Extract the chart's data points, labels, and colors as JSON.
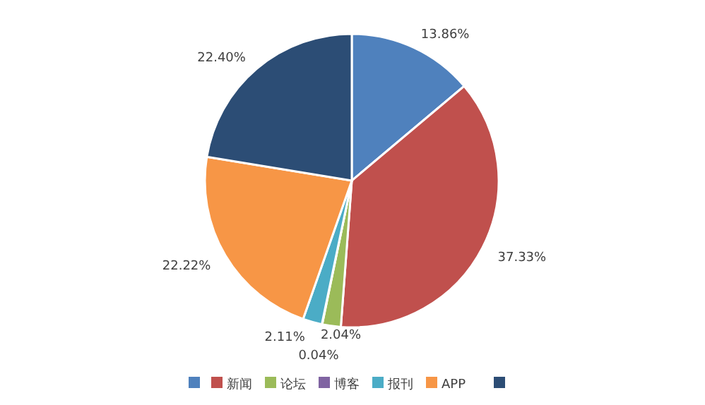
{
  "chart_data": {
    "type": "pie",
    "categories": [
      null,
      "新闻",
      "论坛",
      "博客",
      "报刊",
      "APP",
      null
    ],
    "values": [
      13.86,
      37.33,
      2.04,
      0.04,
      2.11,
      22.22,
      22.4
    ],
    "colors": [
      "#4f81bd",
      "#c0504d",
      "#9bbb59",
      "#8064a2",
      "#4bacc6",
      "#f79646",
      "#2c4d75"
    ],
    "value_labels": [
      "13.86%",
      "37.33%",
      "2.04%",
      "0.04%",
      "2.11%",
      "22.22%",
      "22.40%"
    ],
    "legend": "bottom"
  }
}
